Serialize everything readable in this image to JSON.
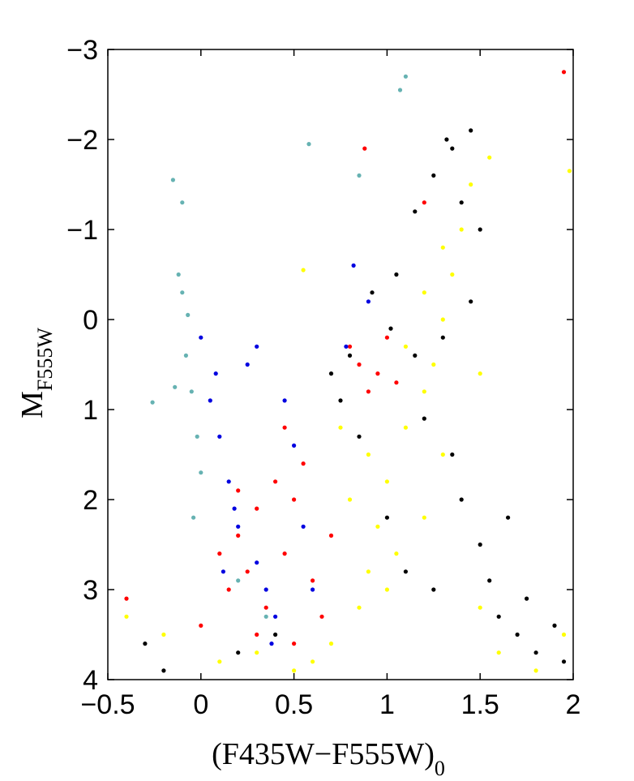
{
  "chart_data": {
    "type": "scatter",
    "title": "",
    "xlabel": "(F435W−F555W)",
    "xlabel_subscript": "0",
    "ylabel": "M",
    "ylabel_subscript": "F555W",
    "xlim": [
      -0.5,
      2
    ],
    "ylim": [
      4,
      -3
    ],
    "y_axis_inverted": true,
    "grid": false,
    "legend": "none",
    "x_ticks": [
      -0.5,
      0,
      0.5,
      1,
      1.5,
      2
    ],
    "x_tick_labels": [
      "−0.5",
      "0",
      "0.5",
      "1",
      "1.5",
      "2"
    ],
    "y_ticks": [
      -3,
      -2,
      -1,
      0,
      1,
      2,
      3,
      4
    ],
    "y_tick_labels": [
      "−3",
      "−2",
      "−1",
      "0",
      "1",
      "2",
      "3",
      "4"
    ],
    "series": [
      {
        "color": "#000000",
        "points": [
          [
            0.92,
            -0.3
          ],
          [
            1.05,
            -0.5
          ],
          [
            1.15,
            -1.2
          ],
          [
            1.25,
            -1.6
          ],
          [
            1.35,
            -1.9
          ],
          [
            1.4,
            -1.3
          ],
          [
            1.5,
            -1.0
          ],
          [
            1.45,
            -0.2
          ],
          [
            1.3,
            0.2
          ],
          [
            0.8,
            0.4
          ],
          [
            0.7,
            0.6
          ],
          [
            0.75,
            0.9
          ],
          [
            0.85,
            1.3
          ],
          [
            1.2,
            1.1
          ],
          [
            1.35,
            1.5
          ],
          [
            1.4,
            2.0
          ],
          [
            1.5,
            2.5
          ],
          [
            1.55,
            2.9
          ],
          [
            1.6,
            3.3
          ],
          [
            1.7,
            3.5
          ],
          [
            1.8,
            3.7
          ],
          [
            1.9,
            3.4
          ],
          [
            1.95,
            3.8
          ],
          [
            1.0,
            2.2
          ],
          [
            1.1,
            2.8
          ],
          [
            1.25,
            3.0
          ],
          [
            0.4,
            3.5
          ],
          [
            -0.3,
            3.6
          ],
          [
            -0.2,
            3.9
          ],
          [
            0.2,
            3.7
          ],
          [
            1.65,
            2.2
          ],
          [
            1.75,
            3.1
          ],
          [
            1.15,
            0.4
          ],
          [
            1.02,
            0.1
          ],
          [
            1.32,
            -2.0
          ],
          [
            1.45,
            -2.1
          ]
        ]
      },
      {
        "color": "#ff0000",
        "points": [
          [
            0.2,
            2.4
          ],
          [
            0.3,
            2.1
          ],
          [
            0.25,
            2.8
          ],
          [
            0.35,
            3.2
          ],
          [
            0.45,
            2.6
          ],
          [
            0.15,
            3.0
          ],
          [
            0.5,
            2.0
          ],
          [
            0.55,
            1.6
          ],
          [
            0.4,
            1.8
          ],
          [
            0.3,
            3.5
          ],
          [
            0.1,
            2.6
          ],
          [
            0.6,
            2.9
          ],
          [
            0.7,
            2.4
          ],
          [
            0.65,
            3.3
          ],
          [
            0.85,
            0.5
          ],
          [
            0.9,
            0.8
          ],
          [
            0.95,
            0.6
          ],
          [
            0.8,
            0.3
          ],
          [
            1.0,
            0.2
          ],
          [
            1.05,
            0.7
          ],
          [
            0.2,
            1.9
          ],
          [
            0.5,
            3.6
          ],
          [
            0.0,
            3.4
          ],
          [
            -0.4,
            3.1
          ],
          [
            0.45,
            1.2
          ],
          [
            1.95,
            -2.75
          ],
          [
            0.88,
            -1.9
          ],
          [
            1.2,
            -1.3
          ]
        ]
      },
      {
        "color": "#0000e0",
        "points": [
          [
            0.05,
            0.9
          ],
          [
            0.1,
            1.3
          ],
          [
            0.15,
            1.8
          ],
          [
            0.2,
            2.3
          ],
          [
            0.3,
            2.7
          ],
          [
            0.35,
            3.0
          ],
          [
            0.4,
            3.3
          ],
          [
            0.25,
            0.5
          ],
          [
            0.3,
            0.3
          ],
          [
            0.45,
            0.9
          ],
          [
            0.5,
            1.4
          ],
          [
            0.55,
            2.3
          ],
          [
            0.6,
            3.0
          ],
          [
            0.12,
            2.8
          ],
          [
            0.0,
            0.2
          ],
          [
            0.08,
            0.6
          ],
          [
            0.82,
            -0.6
          ],
          [
            0.78,
            0.3
          ],
          [
            0.9,
            -0.2
          ],
          [
            0.18,
            2.1
          ],
          [
            0.38,
            3.6
          ]
        ]
      },
      {
        "color": "#66b2b2",
        "points": [
          [
            -0.15,
            -1.55
          ],
          [
            -0.1,
            -1.3
          ],
          [
            -0.12,
            -0.5
          ],
          [
            -0.1,
            -0.3
          ],
          [
            -0.08,
            0.4
          ],
          [
            -0.05,
            0.8
          ],
          [
            -0.02,
            1.3
          ],
          [
            0.0,
            1.7
          ],
          [
            -0.04,
            2.2
          ],
          [
            1.1,
            -2.7
          ],
          [
            1.07,
            -2.55
          ],
          [
            0.58,
            -1.95
          ],
          [
            0.85,
            -1.6
          ],
          [
            -0.26,
            0.92
          ],
          [
            -0.14,
            0.75
          ],
          [
            -0.07,
            -0.05
          ],
          [
            0.2,
            2.9
          ],
          [
            0.35,
            3.3
          ]
        ]
      },
      {
        "color": "#ffff00",
        "points": [
          [
            0.8,
            2.0
          ],
          [
            0.9,
            1.5
          ],
          [
            0.95,
            2.3
          ],
          [
            1.0,
            1.8
          ],
          [
            1.05,
            2.6
          ],
          [
            1.1,
            1.2
          ],
          [
            1.2,
            0.8
          ],
          [
            1.25,
            0.5
          ],
          [
            1.3,
            0.0
          ],
          [
            1.35,
            -0.5
          ],
          [
            1.4,
            -1.0
          ],
          [
            1.45,
            -1.5
          ],
          [
            1.3,
            -0.8
          ],
          [
            1.2,
            -0.3
          ],
          [
            1.1,
            0.3
          ],
          [
            0.9,
            2.8
          ],
          [
            0.85,
            3.2
          ],
          [
            0.7,
            3.6
          ],
          [
            0.6,
            3.8
          ],
          [
            0.5,
            3.9
          ],
          [
            0.3,
            3.7
          ],
          [
            0.1,
            3.8
          ],
          [
            -0.2,
            3.5
          ],
          [
            -0.4,
            3.3
          ],
          [
            1.5,
            3.2
          ],
          [
            1.6,
            3.7
          ],
          [
            1.8,
            3.9
          ],
          [
            1.95,
            3.5
          ],
          [
            1.3,
            1.5
          ],
          [
            1.2,
            2.2
          ],
          [
            1.0,
            3.0
          ],
          [
            0.75,
            1.2
          ],
          [
            1.55,
            -1.8
          ],
          [
            1.98,
            -1.65
          ],
          [
            0.55,
            -0.55
          ],
          [
            1.5,
            0.6
          ]
        ]
      }
    ]
  }
}
